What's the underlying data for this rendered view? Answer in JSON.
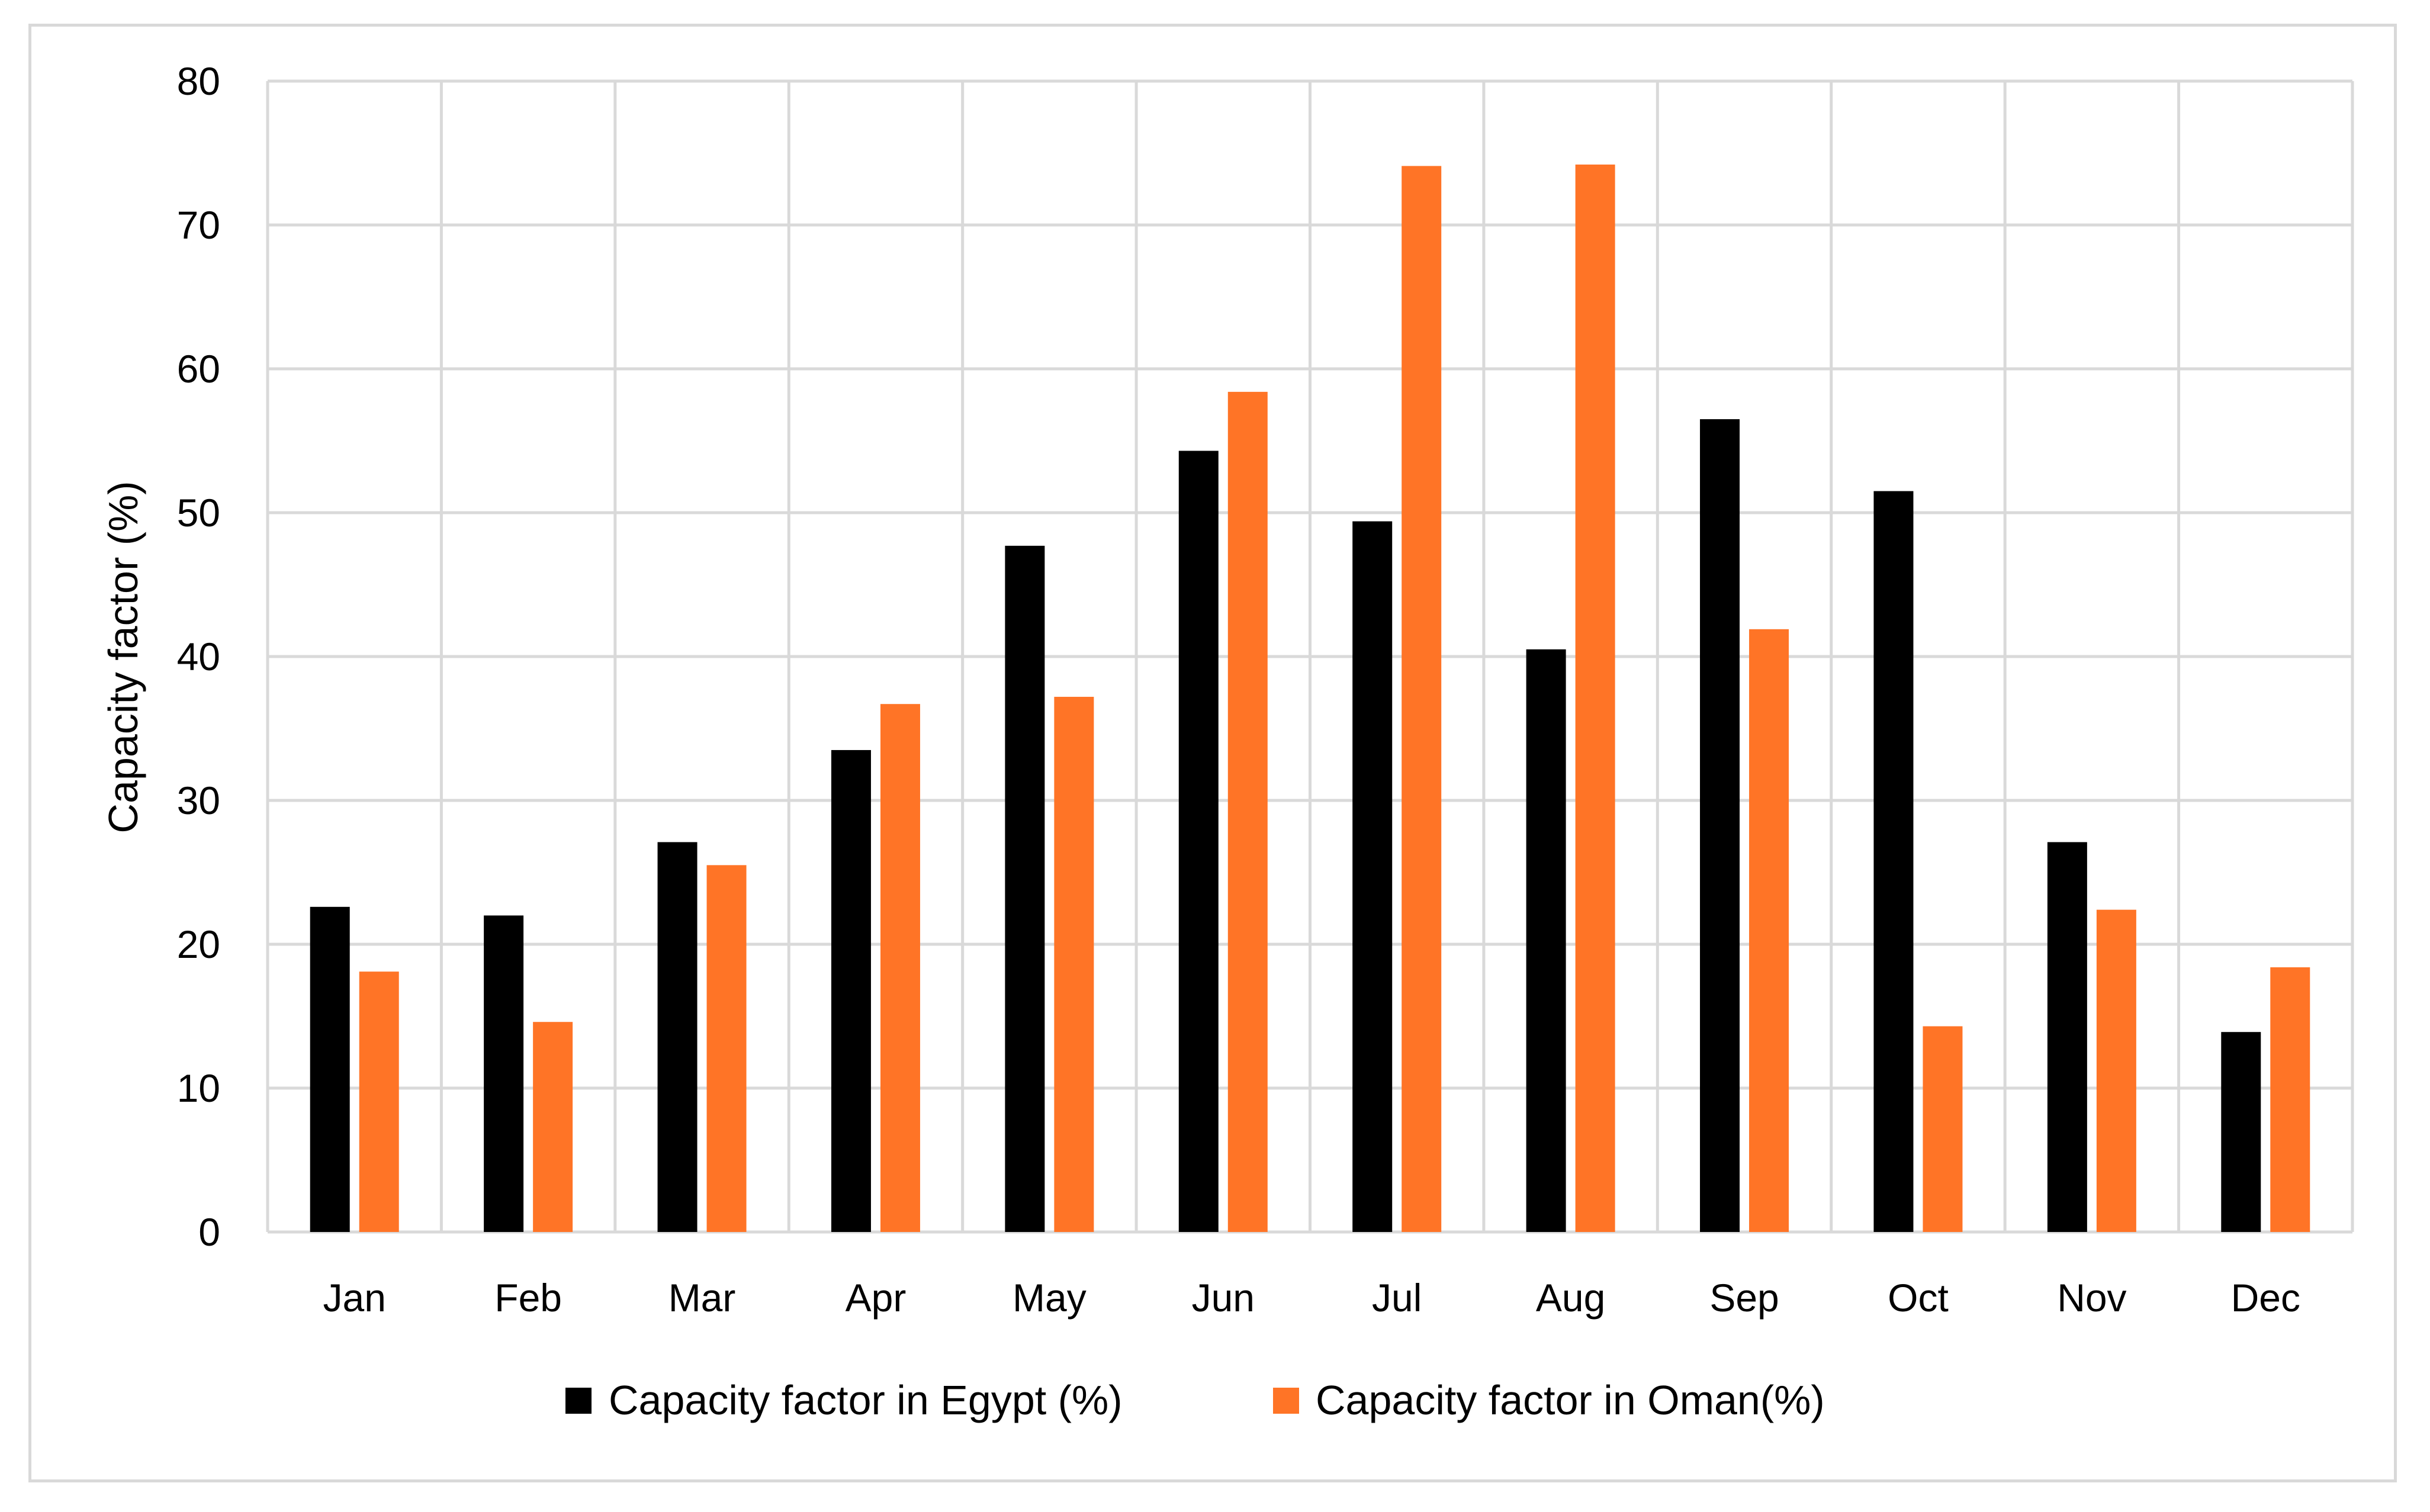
{
  "chart_data": {
    "type": "bar",
    "title": "",
    "xlabel": "",
    "ylabel": "Capacity factor (%)",
    "ylim": [
      0,
      80
    ],
    "yticks": [
      0,
      10,
      20,
      30,
      40,
      50,
      60,
      70,
      80
    ],
    "grid": true,
    "legend_position": "bottom",
    "categories": [
      "Jan",
      "Feb",
      "Mar",
      "Apr",
      "May",
      "Jun",
      "Jul",
      "Aug",
      "Sep",
      "Oct",
      "Nov",
      "Dec"
    ],
    "series": [
      {
        "name": "Capacity factor in Egypt (%)",
        "color": "#000000",
        "values": [
          22.6,
          22.0,
          27.1,
          33.5,
          47.7,
          54.3,
          49.4,
          40.5,
          56.5,
          51.5,
          27.1,
          13.9
        ]
      },
      {
        "name": "Capacity factor in Oman(%)",
        "color": "#ff7426",
        "values": [
          18.1,
          14.6,
          25.5,
          36.7,
          37.2,
          58.4,
          74.1,
          74.2,
          41.9,
          14.3,
          22.4,
          18.4
        ]
      }
    ],
    "gridline_color": "#d9d9d9"
  }
}
